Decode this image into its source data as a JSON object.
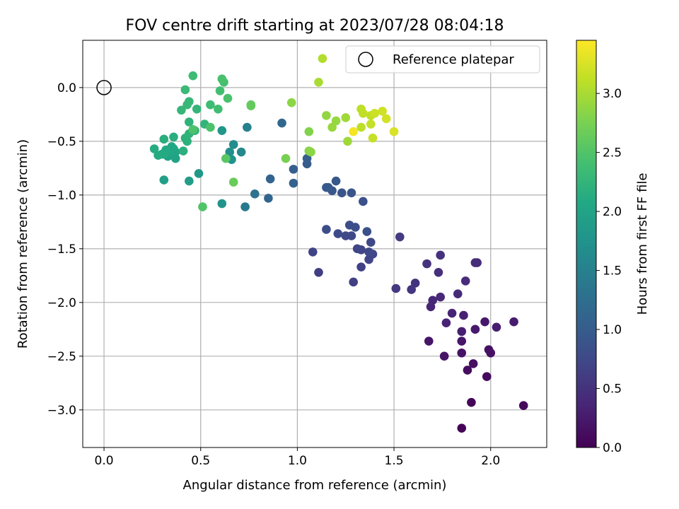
{
  "chart_data": {
    "type": "scatter",
    "title": "FOV centre drift starting at 2023/07/28 08:04:18",
    "xlabel": "Angular distance from reference (arcmin)",
    "ylabel": "Rotation from reference (arcmin)",
    "xlim": [
      -0.11,
      2.29
    ],
    "ylim": [
      -3.35,
      0.44
    ],
    "x_ticks": [
      0.0,
      0.5,
      1.0,
      1.5,
      2.0
    ],
    "x_tick_labels": [
      "0.0",
      "0.5",
      "1.0",
      "1.5",
      "2.0"
    ],
    "y_ticks": [
      0.0,
      -0.5,
      -1.0,
      -1.5,
      -2.0,
      -2.5,
      -3.0
    ],
    "y_tick_labels": [
      "0.0",
      "−0.5",
      "−1.0",
      "−1.5",
      "−2.0",
      "−2.5",
      "−3.0"
    ],
    "grid": true,
    "legend": {
      "position": "top-right",
      "entries": [
        "Reference platepar"
      ]
    },
    "reference_marker": {
      "x": 0.0,
      "y": 0.0,
      "style": "hollow-circle"
    },
    "colorbar": {
      "label": "Hours from first FF file",
      "colormap": "viridis",
      "range": [
        0.0,
        3.45
      ],
      "ticks": [
        0.0,
        0.5,
        1.0,
        1.5,
        2.0,
        2.5,
        3.0
      ],
      "tick_labels": [
        "0.0",
        "0.5",
        "1.0",
        "1.5",
        "2.0",
        "2.5",
        "3.0"
      ]
    },
    "points": [
      {
        "x": 1.85,
        "y": -3.17,
        "c": 0.03
      },
      {
        "x": 1.9,
        "y": -2.93,
        "c": 0.05
      },
      {
        "x": 2.17,
        "y": -2.96,
        "c": 0.08
      },
      {
        "x": 1.98,
        "y": -2.69,
        "c": 0.1
      },
      {
        "x": 1.88,
        "y": -2.63,
        "c": 0.12
      },
      {
        "x": 1.91,
        "y": -2.57,
        "c": 0.14
      },
      {
        "x": 1.99,
        "y": -2.44,
        "c": 0.15
      },
      {
        "x": 2.0,
        "y": -2.47,
        "c": 0.16
      },
      {
        "x": 1.85,
        "y": -2.47,
        "c": 0.17
      },
      {
        "x": 1.76,
        "y": -2.5,
        "c": 0.18
      },
      {
        "x": 1.68,
        "y": -2.36,
        "c": 0.2
      },
      {
        "x": 1.85,
        "y": -2.36,
        "c": 0.22
      },
      {
        "x": 1.97,
        "y": -2.18,
        "c": 0.23
      },
      {
        "x": 1.92,
        "y": -2.25,
        "c": 0.25
      },
      {
        "x": 2.12,
        "y": -2.18,
        "c": 0.27
      },
      {
        "x": 2.03,
        "y": -2.23,
        "c": 0.28
      },
      {
        "x": 1.85,
        "y": -2.27,
        "c": 0.3
      },
      {
        "x": 1.86,
        "y": -2.12,
        "c": 0.32
      },
      {
        "x": 1.77,
        "y": -2.19,
        "c": 0.34
      },
      {
        "x": 1.8,
        "y": -2.1,
        "c": 0.35
      },
      {
        "x": 1.69,
        "y": -2.04,
        "c": 0.37
      },
      {
        "x": 1.7,
        "y": -1.98,
        "c": 0.38
      },
      {
        "x": 1.74,
        "y": -1.95,
        "c": 0.4
      },
      {
        "x": 1.83,
        "y": -1.92,
        "c": 0.42
      },
      {
        "x": 1.87,
        "y": -1.8,
        "c": 0.43
      },
      {
        "x": 1.93,
        "y": -1.63,
        "c": 0.44
      },
      {
        "x": 1.92,
        "y": -1.63,
        "c": 0.45
      },
      {
        "x": 1.73,
        "y": -1.72,
        "c": 0.47
      },
      {
        "x": 1.67,
        "y": -1.64,
        "c": 0.48
      },
      {
        "x": 1.74,
        "y": -1.56,
        "c": 0.5
      },
      {
        "x": 1.61,
        "y": -1.82,
        "c": 0.52
      },
      {
        "x": 1.59,
        "y": -1.88,
        "c": 0.54
      },
      {
        "x": 1.51,
        "y": -1.87,
        "c": 0.56
      },
      {
        "x": 1.53,
        "y": -1.39,
        "c": 0.6
      },
      {
        "x": 1.11,
        "y": -1.72,
        "c": 0.62
      },
      {
        "x": 1.29,
        "y": -1.81,
        "c": 0.64
      },
      {
        "x": 1.33,
        "y": -1.67,
        "c": 0.66
      },
      {
        "x": 1.08,
        "y": -1.53,
        "c": 0.68
      },
      {
        "x": 1.31,
        "y": -1.5,
        "c": 0.7
      },
      {
        "x": 1.33,
        "y": -1.51,
        "c": 0.71
      },
      {
        "x": 1.37,
        "y": -1.6,
        "c": 0.72
      },
      {
        "x": 1.39,
        "y": -1.55,
        "c": 0.73
      },
      {
        "x": 1.37,
        "y": -1.53,
        "c": 0.74
      },
      {
        "x": 1.38,
        "y": -1.44,
        "c": 0.75
      },
      {
        "x": 1.28,
        "y": -1.38,
        "c": 0.76
      },
      {
        "x": 1.25,
        "y": -1.38,
        "c": 0.77
      },
      {
        "x": 1.21,
        "y": -1.36,
        "c": 0.78
      },
      {
        "x": 1.15,
        "y": -1.32,
        "c": 0.8
      },
      {
        "x": 1.27,
        "y": -1.28,
        "c": 0.81
      },
      {
        "x": 1.3,
        "y": -1.3,
        "c": 0.82
      },
      {
        "x": 1.36,
        "y": -1.34,
        "c": 0.84
      },
      {
        "x": 1.34,
        "y": -1.06,
        "c": 0.86
      },
      {
        "x": 1.28,
        "y": -0.98,
        "c": 0.88
      },
      {
        "x": 1.23,
        "y": -0.98,
        "c": 0.9
      },
      {
        "x": 1.18,
        "y": -0.96,
        "c": 0.92
      },
      {
        "x": 1.2,
        "y": -0.87,
        "c": 0.94
      },
      {
        "x": 1.16,
        "y": -0.93,
        "c": 0.96
      },
      {
        "x": 1.15,
        "y": -0.93,
        "c": 0.97
      },
      {
        "x": 1.05,
        "y": -0.71,
        "c": 1.0
      },
      {
        "x": 1.05,
        "y": -0.66,
        "c": 1.02
      },
      {
        "x": 0.98,
        "y": -0.76,
        "c": 1.04
      },
      {
        "x": 0.98,
        "y": -0.89,
        "c": 1.06
      },
      {
        "x": 0.86,
        "y": -0.85,
        "c": 1.1
      },
      {
        "x": 0.85,
        "y": -1.03,
        "c": 1.12
      },
      {
        "x": 0.92,
        "y": -0.33,
        "c": 1.15
      },
      {
        "x": 0.78,
        "y": -0.99,
        "c": 1.3
      },
      {
        "x": 0.73,
        "y": -1.11,
        "c": 1.4
      },
      {
        "x": 0.74,
        "y": -0.37,
        "c": 1.5
      },
      {
        "x": 0.71,
        "y": -0.6,
        "c": 1.6
      },
      {
        "x": 0.67,
        "y": -0.53,
        "c": 1.65
      },
      {
        "x": 0.65,
        "y": -0.6,
        "c": 1.7
      },
      {
        "x": 0.66,
        "y": -0.67,
        "c": 1.75
      },
      {
        "x": 0.61,
        "y": -1.08,
        "c": 1.75
      },
      {
        "x": 0.61,
        "y": -0.4,
        "c": 1.8
      },
      {
        "x": 0.49,
        "y": -0.8,
        "c": 1.85
      },
      {
        "x": 0.44,
        "y": -0.87,
        "c": 1.9
      },
      {
        "x": 0.31,
        "y": -0.86,
        "c": 1.95
      },
      {
        "x": 0.37,
        "y": -0.66,
        "c": 2.0
      },
      {
        "x": 0.33,
        "y": -0.64,
        "c": 2.0
      },
      {
        "x": 0.37,
        "y": -0.6,
        "c": 2.02
      },
      {
        "x": 0.36,
        "y": -0.57,
        "c": 2.03
      },
      {
        "x": 0.34,
        "y": -0.6,
        "c": 2.04
      },
      {
        "x": 0.35,
        "y": -0.55,
        "c": 2.05
      },
      {
        "x": 0.3,
        "y": -0.62,
        "c": 2.06
      },
      {
        "x": 0.32,
        "y": -0.58,
        "c": 2.08
      },
      {
        "x": 0.31,
        "y": -0.62,
        "c": 2.1
      },
      {
        "x": 0.28,
        "y": -0.63,
        "c": 2.1
      },
      {
        "x": 0.26,
        "y": -0.57,
        "c": 2.12
      },
      {
        "x": 0.31,
        "y": -0.48,
        "c": 2.15
      },
      {
        "x": 0.36,
        "y": -0.46,
        "c": 2.15
      },
      {
        "x": 0.41,
        "y": -0.59,
        "c": 2.18
      },
      {
        "x": 0.43,
        "y": -0.5,
        "c": 2.2
      },
      {
        "x": 0.42,
        "y": -0.47,
        "c": 2.2
      },
      {
        "x": 0.44,
        "y": -0.43,
        "c": 2.22
      },
      {
        "x": 0.44,
        "y": -0.32,
        "c": 2.22
      },
      {
        "x": 0.47,
        "y": -0.4,
        "c": 2.23
      },
      {
        "x": 0.52,
        "y": -0.34,
        "c": 2.25
      },
      {
        "x": 0.48,
        "y": -0.2,
        "c": 2.26
      },
      {
        "x": 0.4,
        "y": -0.21,
        "c": 2.28
      },
      {
        "x": 0.43,
        "y": -0.16,
        "c": 2.3
      },
      {
        "x": 0.44,
        "y": -0.13,
        "c": 2.3
      },
      {
        "x": 0.42,
        "y": -0.02,
        "c": 2.32
      },
      {
        "x": 0.46,
        "y": 0.11,
        "c": 2.35
      },
      {
        "x": 0.55,
        "y": -0.16,
        "c": 2.36
      },
      {
        "x": 0.59,
        "y": -0.2,
        "c": 2.38
      },
      {
        "x": 0.6,
        "y": -0.03,
        "c": 2.4
      },
      {
        "x": 0.62,
        "y": 0.05,
        "c": 2.42
      },
      {
        "x": 0.61,
        "y": 0.08,
        "c": 2.44
      },
      {
        "x": 0.64,
        "y": -0.1,
        "c": 2.45
      },
      {
        "x": 0.55,
        "y": -0.37,
        "c": 2.46
      },
      {
        "x": 0.46,
        "y": -0.39,
        "c": 2.48
      },
      {
        "x": 0.51,
        "y": -1.11,
        "c": 2.5
      },
      {
        "x": 0.63,
        "y": -0.66,
        "c": 2.55
      },
      {
        "x": 0.76,
        "y": -0.16,
        "c": 2.6
      },
      {
        "x": 0.76,
        "y": -0.17,
        "c": 2.62
      },
      {
        "x": 0.67,
        "y": -0.88,
        "c": 2.65
      },
      {
        "x": 0.94,
        "y": -0.66,
        "c": 2.75
      },
      {
        "x": 1.06,
        "y": -0.41,
        "c": 2.8
      },
      {
        "x": 1.06,
        "y": -0.59,
        "c": 2.82
      },
      {
        "x": 1.07,
        "y": -0.6,
        "c": 2.85
      },
      {
        "x": 0.97,
        "y": -0.14,
        "c": 2.85
      },
      {
        "x": 1.15,
        "y": -0.26,
        "c": 2.88
      },
      {
        "x": 1.2,
        "y": -0.31,
        "c": 2.9
      },
      {
        "x": 1.18,
        "y": -0.37,
        "c": 2.92
      },
      {
        "x": 1.25,
        "y": -0.28,
        "c": 2.95
      },
      {
        "x": 1.26,
        "y": -0.5,
        "c": 2.95
      },
      {
        "x": 1.11,
        "y": 0.05,
        "c": 3.0
      },
      {
        "x": 1.13,
        "y": 0.27,
        "c": 3.05
      },
      {
        "x": 1.33,
        "y": -0.37,
        "c": 3.1
      },
      {
        "x": 1.33,
        "y": -0.2,
        "c": 3.1
      },
      {
        "x": 1.34,
        "y": -0.24,
        "c": 3.12
      },
      {
        "x": 1.38,
        "y": -0.26,
        "c": 3.12
      },
      {
        "x": 1.38,
        "y": -0.34,
        "c": 3.15
      },
      {
        "x": 1.39,
        "y": -0.47,
        "c": 3.15
      },
      {
        "x": 1.4,
        "y": -0.24,
        "c": 3.18
      },
      {
        "x": 1.44,
        "y": -0.22,
        "c": 3.2
      },
      {
        "x": 1.46,
        "y": -0.29,
        "c": 3.22
      },
      {
        "x": 1.5,
        "y": -0.41,
        "c": 3.25
      },
      {
        "x": 1.29,
        "y": -0.41,
        "c": 3.4
      }
    ]
  }
}
